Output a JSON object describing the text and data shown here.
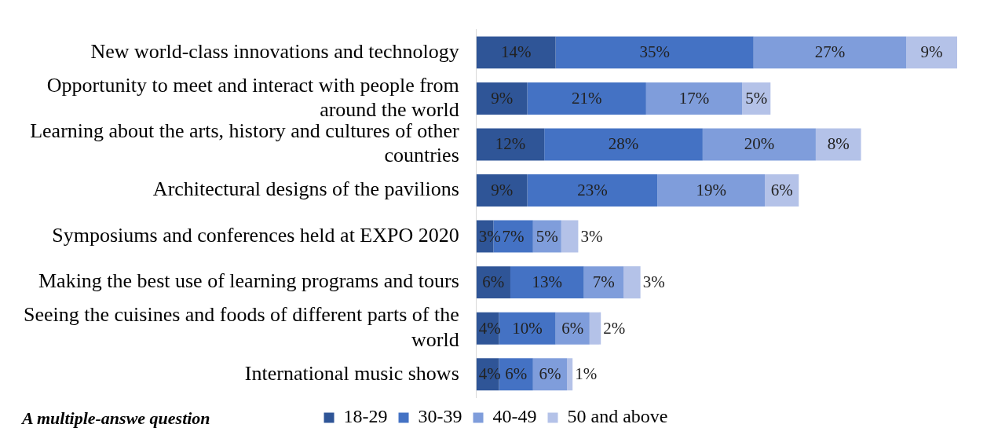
{
  "chart_data": {
    "type": "bar",
    "orientation": "horizontal",
    "stacked": true,
    "tick_labels": "y",
    "legend": "bottom",
    "categories": [
      "New world-class innovations and technology",
      "Opportunity to meet and interact with people from around the world",
      "Learning about the arts, history and cultures of other countries",
      "Architectural designs of the pavilions",
      "Symposiums and conferences held at EXPO 2020",
      "Making the best use of learning programs and tours",
      "Seeing the cuisines and foods of different parts of the world",
      "International music shows"
    ],
    "series": [
      {
        "name": "18-29",
        "color": "#2f5597",
        "values": [
          14,
          9,
          12,
          9,
          3,
          6,
          4,
          4
        ],
        "value_labels": [
          "14%",
          "9%",
          "12%",
          "9%",
          "3%",
          "6%",
          "4%",
          "4%"
        ]
      },
      {
        "name": "30-39",
        "color": "#4472c4",
        "values": [
          35,
          21,
          28,
          23,
          7,
          13,
          10,
          6
        ],
        "value_labels": [
          "35%",
          "21%",
          "28%",
          "23%",
          "7%",
          "13%",
          "10%",
          "6%"
        ]
      },
      {
        "name": "40-49",
        "color": "#7f9ddb",
        "values": [
          27,
          17,
          20,
          19,
          5,
          7,
          6,
          6
        ],
        "value_labels": [
          "27%",
          "17%",
          "20%",
          "19%",
          "5%",
          "7%",
          "6%",
          "6%"
        ]
      },
      {
        "name": "50 and above",
        "color": "#b4c2e8",
        "values": [
          9,
          5,
          8,
          6,
          3,
          3,
          2,
          1
        ],
        "value_labels": [
          "9%",
          "5%",
          "8%",
          "6%",
          "3%",
          "3%",
          "2%",
          "1%"
        ]
      }
    ],
    "annotations": [
      "A multiple-answe question"
    ]
  }
}
